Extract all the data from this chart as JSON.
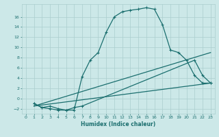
{
  "xlabel": "Humidex (Indice chaleur)",
  "background_color": "#cce8e8",
  "line_color": "#1a6e6e",
  "grid_color": "#aacece",
  "xlim": [
    -0.5,
    23.5
  ],
  "ylim": [
    -3,
    18.5
  ],
  "xticks": [
    0,
    1,
    2,
    3,
    4,
    5,
    6,
    7,
    8,
    9,
    10,
    11,
    12,
    13,
    14,
    15,
    16,
    17,
    18,
    19,
    20,
    21,
    22,
    23
  ],
  "yticks": [
    -2,
    0,
    2,
    4,
    6,
    8,
    10,
    12,
    14,
    16
  ],
  "line1_x": [
    1,
    2,
    3,
    4,
    5,
    6,
    7,
    8,
    9,
    10,
    11,
    12,
    13,
    14,
    15,
    16,
    17,
    18,
    19,
    20,
    21,
    22,
    23
  ],
  "line1_y": [
    -1.0,
    -1.8,
    -2.0,
    -2.3,
    -2.3,
    -2.3,
    4.3,
    7.5,
    9.0,
    13.0,
    16.0,
    17.0,
    17.3,
    17.5,
    17.8,
    17.5,
    14.5,
    9.5,
    9.0,
    7.5,
    4.5,
    3.0,
    3.0
  ],
  "line2_x": [
    1,
    2,
    3,
    4,
    5,
    6,
    7,
    21,
    22,
    23
  ],
  "line2_y": [
    -1.0,
    -1.8,
    -1.5,
    -2.0,
    -2.3,
    -1.8,
    -1.5,
    7.5,
    4.5,
    3.0
  ],
  "line3_x": [
    1,
    23
  ],
  "line3_y": [
    -1.5,
    3.0
  ],
  "line4_x": [
    1,
    23
  ],
  "line4_y": [
    -1.5,
    9.0
  ]
}
